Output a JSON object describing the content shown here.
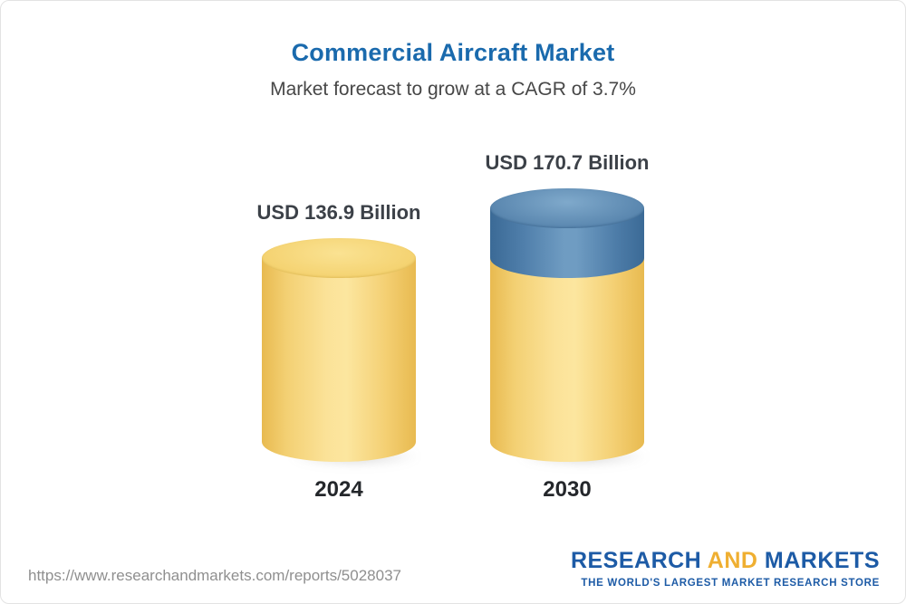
{
  "title": "Commercial Aircraft Market",
  "subtitle": "Market forecast to grow at a CAGR of 3.7%",
  "chart_data": {
    "type": "bar",
    "categories": [
      "2024",
      "2030"
    ],
    "values": [
      136.9,
      170.7
    ],
    "value_labels": [
      "USD 136.9 Billion",
      "USD 170.7 Billion"
    ],
    "unit": "USD Billion",
    "title": "Commercial Aircraft Market",
    "subtitle": "Market forecast to grow at a CAGR of 3.7%",
    "cagr": "3.7%",
    "legend_position": "none",
    "grid": false,
    "colors": {
      "bar_base": "#f6cf65",
      "growth_segment": "#4f81ab",
      "title_text": "#1a6aad",
      "label_text": "#3c4148"
    }
  },
  "footer": {
    "url": "https://www.researchandmarkets.com/reports/5028037",
    "logo": {
      "research": "RESEARCH",
      "and": "AND",
      "markets": "MARKETS",
      "tagline": "THE WORLD'S LARGEST MARKET RESEARCH STORE"
    }
  }
}
